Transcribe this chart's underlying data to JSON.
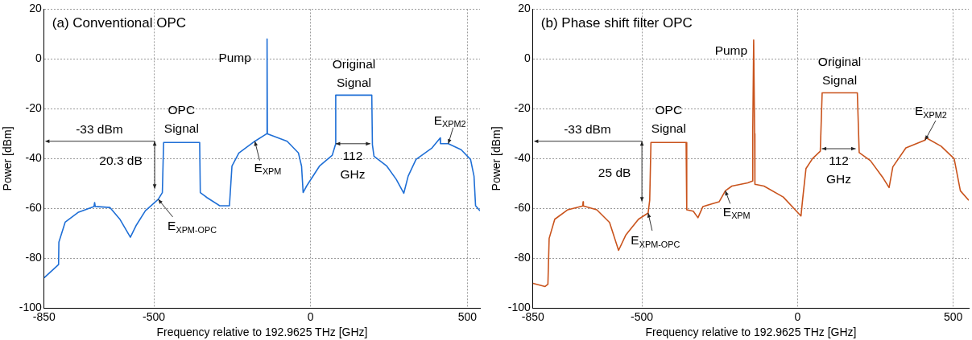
{
  "chart_data": [
    {
      "type": "line",
      "title": "(a) Conventional OPC",
      "xlabel": "Frequency relative to 192.9625 THz [GHz]",
      "ylabel": "Power [dBm]",
      "xlim": [
        -850,
        540
      ],
      "ylim": [
        -100,
        20
      ],
      "xticks": [
        -850,
        -500,
        0,
        500
      ],
      "yticks": [
        -100,
        -80,
        -60,
        -40,
        -20,
        0,
        20
      ],
      "grid": true,
      "legend": false,
      "marker": "none",
      "line_style": "solid",
      "series": [
        {
          "color": "#1f6fd6",
          "x": [
            -850,
            -804,
            -803,
            -783,
            -742,
            -691,
            -689,
            -687,
            -640,
            -609,
            -575,
            -557,
            -527,
            -486,
            -473,
            -469,
            -354,
            -352,
            -331,
            -290,
            -259,
            -251,
            -229,
            -178,
            -140,
            -139,
            -138,
            -75,
            -39,
            -29,
            -24,
            -13,
            28,
            69,
            79,
            80,
            195,
            197,
            202,
            243,
            273,
            297,
            311,
            336,
            387,
            413,
            414,
            439,
            480,
            510,
            521,
            526,
            540
          ],
          "values": [
            -87.8,
            -82.5,
            -73.5,
            -65.5,
            -61.6,
            -59.2,
            -57.6,
            -59.2,
            -59.6,
            -64.2,
            -71.5,
            -66.9,
            -60.9,
            -56.3,
            -53.6,
            -33.5,
            -33.5,
            -53.6,
            -55.6,
            -58.9,
            -58.9,
            -43,
            -37.7,
            -33,
            -30,
            8,
            -30,
            -33,
            -37.7,
            -43,
            -53.6,
            -51,
            -43,
            -38.6,
            -34.4,
            -14.5,
            -14.5,
            -34.4,
            -39,
            -43,
            -48.3,
            -53.9,
            -47,
            -40.3,
            -35.7,
            -31.7,
            -34,
            -34,
            -36.4,
            -40.3,
            -47,
            -58.9,
            -60.9
          ]
        }
      ],
      "annotations": [
        {
          "text": "Pump",
          "x": -139,
          "y": 8
        },
        {
          "text": "OPC Signal",
          "x": -412,
          "y": -33.5
        },
        {
          "text": "Original Signal",
          "x": 138,
          "y": -14.5
        },
        {
          "text": "E$_{XPM}$",
          "x": -178,
          "y": -33
        },
        {
          "text": "E$_{XPM-OPC}$",
          "x": -486,
          "y": -56.3
        },
        {
          "text": "E$_{XPM2}$",
          "x": 439,
          "y": -34
        },
        "-33 dBm",
        "20.3 dB",
        {
          "text": "112 GHz",
          "x": 80,
          "y": -34
        }
      ]
    },
    {
      "type": "line",
      "title": "(b) Phase shift filter OPC",
      "xlabel": "Frequency relative to 192.9625 THz [GHz]",
      "ylabel": "Power [dBm]",
      "xlim": [
        -850,
        550
      ],
      "ylim": [
        -100,
        20
      ],
      "xticks": [
        -850,
        -500,
        0,
        500
      ],
      "yticks": [
        -100,
        -80,
        -60,
        -40,
        -20,
        0,
        20
      ],
      "grid": true,
      "legend": false,
      "marker": "none",
      "line_style": "solid",
      "series": [
        {
          "color": "#c9531c",
          "x": [
            -850,
            -811,
            -802,
            -798,
            -780,
            -738,
            -690,
            -689,
            -688,
            -645,
            -604,
            -575,
            -552,
            -511,
            -480,
            -475,
            -471,
            -358,
            -356,
            -335,
            -320,
            -304,
            -252,
            -232,
            -211,
            -160,
            -145,
            -144,
            -141,
            -138,
            -137,
            -108,
            -46,
            11,
            16,
            27,
            48,
            73,
            79,
            192,
            198,
            234,
            275,
            294,
            306,
            348,
            410,
            411,
            461,
            503,
            523,
            550
          ],
          "values": [
            -90,
            -91.3,
            -90.4,
            -72,
            -64.3,
            -60.5,
            -59,
            -57.3,
            -59,
            -60.5,
            -65.6,
            -76.8,
            -70.7,
            -64.3,
            -61.8,
            -56.7,
            -33.5,
            -33.5,
            -60.5,
            -61.1,
            -63.7,
            -59.2,
            -57.3,
            -52.9,
            -51,
            -49.7,
            -49,
            -30,
            7.6,
            -30,
            -50.3,
            -51,
            -55.4,
            -63,
            -56.7,
            -44,
            -40,
            -37,
            -13.6,
            -13.6,
            -37.6,
            -40.8,
            -47.8,
            -51.6,
            -43.3,
            -35.7,
            -32.5,
            -31.5,
            -35,
            -40,
            -52.9,
            -56.7
          ]
        }
      ],
      "annotations": [
        {
          "text": "Pump",
          "x": -141,
          "y": 7.6
        },
        {
          "text": "OPC Signal",
          "x": -414,
          "y": -33.5
        },
        {
          "text": "Original Signal",
          "x": 135,
          "y": -13.6
        },
        {
          "text": "E$_{XPM}$",
          "x": -232,
          "y": -52.9
        },
        {
          "text": "E$_{XPM-OPC}$",
          "x": -480,
          "y": -61.8
        },
        {
          "text": "E$_{XPM2}$",
          "x": 410,
          "y": -32.5
        },
        "-33 dBm",
        "25 dB",
        {
          "text": "112 GHz",
          "x": 78,
          "y": -36
        }
      ]
    }
  ]
}
